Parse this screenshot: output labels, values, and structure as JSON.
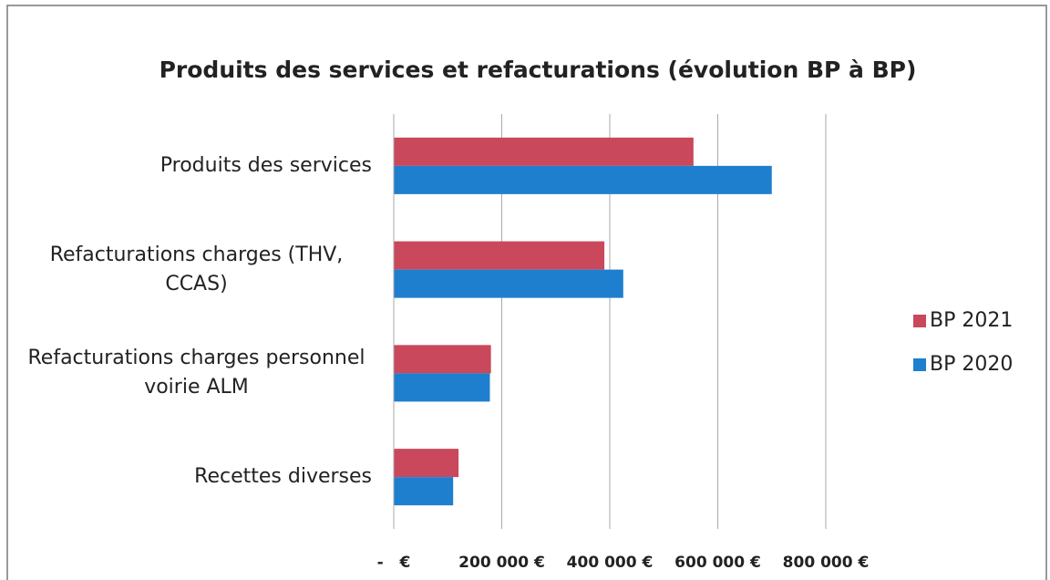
{
  "chart_data": {
    "type": "bar",
    "orientation": "horizontal",
    "title": "Produits  des services et refacturations (évolution BP à BP)",
    "categories": [
      "Produits des services",
      "Refacturations charges (THV, CCAS)",
      "Refacturations charges personnel voirie ALM",
      "Recettes diverses"
    ],
    "series": [
      {
        "name": "BP 2021",
        "color": "#c9485b",
        "values": [
          555000,
          390000,
          180000,
          120000
        ]
      },
      {
        "name": "BP 2020",
        "color": "#1f7fcf",
        "values": [
          700000,
          425000,
          178000,
          110000
        ]
      }
    ],
    "xlim": [
      0,
      800000
    ],
    "xticks": [
      {
        "value": 0,
        "label": "-   €"
      },
      {
        "value": 200000,
        "label": "200 000 €"
      },
      {
        "value": 400000,
        "label": "400 000 €"
      },
      {
        "value": 600000,
        "label": "600 000 €"
      },
      {
        "value": 800000,
        "label": "800 000 €"
      }
    ],
    "grid": true,
    "legend": "right"
  }
}
